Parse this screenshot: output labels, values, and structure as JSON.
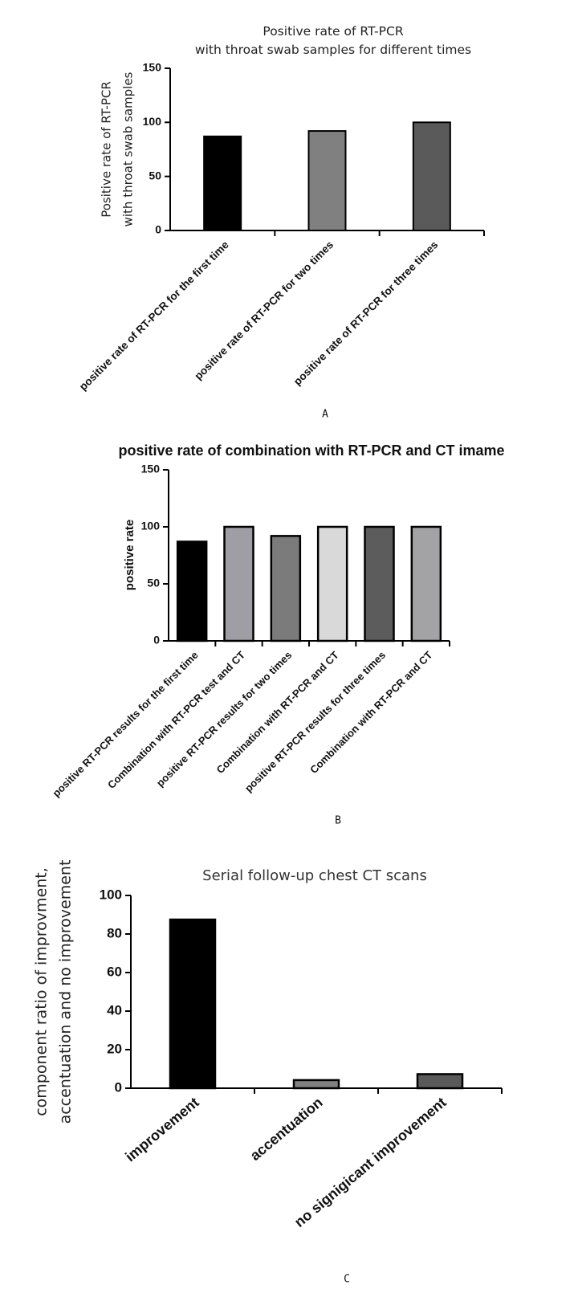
{
  "chart_data": [
    {
      "type": "bar",
      "panel_label": "A",
      "title_lines": [
        "Positive rate of  RT-PCR",
        "with throat swab samples for different times"
      ],
      "ylabel_lines": [
        "Positive rate of  RT-PCR",
        "with throat swab samples"
      ],
      "xlabel": "",
      "categories": [
        "positive rate of RT-PCR  for the first time",
        "positive rate of RT-PCR  for two times",
        "positive rate of RT-PCR  for three times"
      ],
      "values": [
        87,
        92,
        100
      ],
      "bar_colors": [
        "#000000",
        "#808080",
        "#5a5a5a"
      ],
      "ylim": [
        0,
        150
      ],
      "yticks": [
        0,
        50,
        100,
        150
      ],
      "grid": false
    },
    {
      "type": "bar",
      "panel_label": "B",
      "title_lines": [
        "positive rate of combination with RT-PCR and CT imame"
      ],
      "ylabel_lines": [
        "positive rate"
      ],
      "xlabel": "",
      "categories": [
        "positive RT-PCR results for the first time",
        "Combination with  RT-PCR test and CT",
        "positive RT-PCR results for two times",
        "Combination with RT-PCR and CT",
        "positive RT-PCR results for three  times",
        "Combination with RT-PCR and CT"
      ],
      "values": [
        87,
        100,
        92,
        100,
        100,
        100
      ],
      "bar_colors": [
        "#000000",
        "#9e9ea4",
        "#7b7b7b",
        "#d9d9d9",
        "#5c5c5c",
        "#a3a3a6"
      ],
      "ylim": [
        0,
        150
      ],
      "yticks": [
        0,
        50,
        100,
        150
      ],
      "grid": false
    },
    {
      "type": "bar",
      "panel_label": "C",
      "title_lines": [
        "Serial follow-up chest CT scans"
      ],
      "ylabel_lines": [
        "component ratio of improvment,",
        "accentuation and no improvement"
      ],
      "xlabel": "",
      "categories": [
        "improvement",
        "accentuation",
        "no signigicant improvement"
      ],
      "values": [
        87.5,
        4.2,
        7.3
      ],
      "bar_colors": [
        "#000000",
        "#808080",
        "#5a5a5a"
      ],
      "ylim": [
        0,
        100
      ],
      "yticks": [
        0,
        20,
        40,
        60,
        80,
        100
      ],
      "grid": false
    }
  ]
}
